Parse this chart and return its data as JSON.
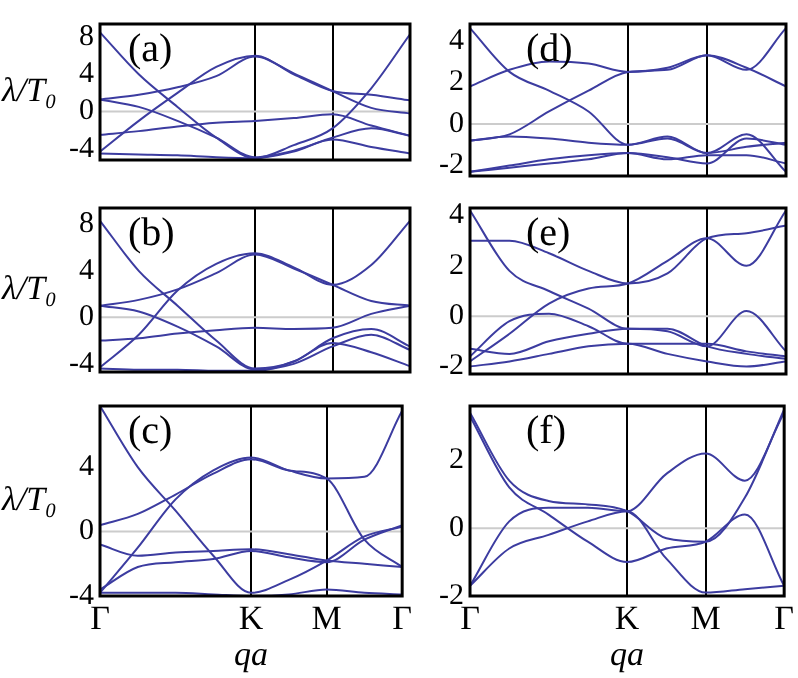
{
  "chart_data": [
    {
      "type": "line",
      "ylabel": "λ/T₀",
      "annotations": [
        "(a)"
      ],
      "categories": [
        null,
        null,
        null,
        null,
        null,
        null,
        null,
        null,
        null
      ],
      "ylim": [
        -5.2,
        9.4
      ],
      "yticks": [
        -4,
        0,
        4,
        8
      ],
      "grid": "x",
      "tick_labels": "y",
      "ref_lines": [
        {
          "axis": "y",
          "value": 0,
          "color": "#cccccc"
        }
      ],
      "series": [
        {
          "color": "#3c3ca0",
          "values": [
            -4.3,
            -1,
            2,
            4.8,
            6,
            4,
            2.2,
            1.8,
            1.2
          ]
        },
        {
          "color": "#3c3ca0",
          "values": [
            8.5,
            4,
            0.5,
            -2.8,
            -5,
            -3.6,
            -1.8,
            2.5,
            8.3
          ]
        },
        {
          "color": "#3c3ca0",
          "values": [
            1.3,
            0.5,
            -1,
            -2.8,
            -4.9,
            -4.2,
            -2.8,
            -1.8,
            -2.6
          ]
        },
        {
          "color": "#3c3ca0",
          "values": [
            -2.5,
            -2.1,
            -1.6,
            -1.2,
            -1,
            -0.7,
            -0.3,
            -1.5,
            -2.6
          ]
        },
        {
          "color": "#3c3ca0",
          "values": [
            -4.5,
            -4.6,
            -4.7,
            -4.9,
            -5,
            -4.3,
            -3,
            -3.8,
            -4.5
          ]
        },
        {
          "color": "#3c3ca0",
          "values": [
            1.3,
            1.8,
            2.6,
            3.8,
            5.9,
            4.1,
            2.2,
            0.4,
            -0.2
          ]
        }
      ]
    },
    {
      "type": "line",
      "annotations": [
        "(d)"
      ],
      "categories": [
        null,
        null,
        null,
        null,
        null,
        null,
        null,
        null,
        null
      ],
      "ylim": [
        -2.5,
        4.8
      ],
      "yticks": [
        -2,
        0,
        2,
        4
      ],
      "grid": "x",
      "tick_labels": "y",
      "ref_lines": [
        {
          "axis": "y",
          "value": 0,
          "color": "#cccccc"
        }
      ],
      "series": [
        {
          "color": "#3c3ca0",
          "values": [
            4.6,
            2.5,
            1.6,
            0.6,
            -1,
            -0.7,
            -1.4,
            -0.5,
            -2.3
          ]
        },
        {
          "color": "#3c3ca0",
          "values": [
            1.8,
            2.6,
            3,
            2.9,
            2.5,
            2.7,
            3.3,
            2.6,
            4.6
          ]
        },
        {
          "color": "#3c3ca0",
          "values": [
            -0.8,
            -0.5,
            0.6,
            1.6,
            2.5,
            2.6,
            3.3,
            2.7,
            1.8
          ]
        },
        {
          "color": "#3c3ca0",
          "values": [
            -0.8,
            -0.6,
            -0.7,
            -0.9,
            -1,
            -0.6,
            -1.4,
            -1.1,
            -0.9
          ]
        },
        {
          "color": "#3c3ca0",
          "values": [
            -2.3,
            -2,
            -1.7,
            -1.5,
            -1.4,
            -1.6,
            -1.9,
            -0.7,
            -1
          ]
        },
        {
          "color": "#3c3ca0",
          "values": [
            -2.3,
            -2.1,
            -1.9,
            -1.7,
            -1.4,
            -1.7,
            -1.5,
            -1.5,
            -1.9
          ]
        }
      ]
    },
    {
      "type": "line",
      "ylabel": "λ/T₀",
      "annotations": [
        "(b)"
      ],
      "categories": [
        null,
        null,
        null,
        null,
        null,
        null,
        null,
        null,
        null
      ],
      "ylim": [
        -4.7,
        9.4
      ],
      "yticks": [
        -4,
        0,
        4,
        8
      ],
      "grid": "x",
      "tick_labels": "y",
      "ref_lines": [
        {
          "axis": "y",
          "value": 0,
          "color": "#cccccc"
        }
      ],
      "series": [
        {
          "color": "#3c3ca0",
          "values": [
            -4.3,
            -1.5,
            2.3,
            4.6,
            5.5,
            4.3,
            2.8,
            4.5,
            8.3
          ]
        },
        {
          "color": "#3c3ca0",
          "values": [
            8.3,
            4,
            1,
            -2,
            -4.4,
            -3.8,
            -1.8,
            -1,
            -2.5
          ]
        },
        {
          "color": "#3c3ca0",
          "values": [
            1,
            0.5,
            -0.8,
            -2.5,
            -4.5,
            -4,
            -2.5,
            -1.5,
            -2.8
          ]
        },
        {
          "color": "#3c3ca0",
          "values": [
            -2,
            -1.8,
            -1.4,
            -1.1,
            -0.9,
            -1,
            -0.9,
            0.3,
            1
          ]
        },
        {
          "color": "#3c3ca0",
          "values": [
            -4.4,
            -4.5,
            -4.5,
            -4.6,
            -4.6,
            -3.8,
            -2.2,
            -3,
            -4.2
          ]
        },
        {
          "color": "#3c3ca0",
          "values": [
            1,
            1.5,
            2.4,
            3.8,
            5.4,
            4.2,
            2.8,
            1.4,
            1
          ]
        }
      ]
    },
    {
      "type": "line",
      "annotations": [
        "(e)"
      ],
      "categories": [
        null,
        null,
        null,
        null,
        null,
        null,
        null,
        null,
        null
      ],
      "ylim": [
        -2.3,
        4.3
      ],
      "yticks": [
        -2,
        0,
        2,
        4
      ],
      "grid": "x",
      "tick_labels": "y",
      "ref_lines": [
        {
          "axis": "y",
          "value": 0,
          "color": "#cccccc"
        }
      ],
      "series": [
        {
          "color": "#3c3ca0",
          "values": [
            4.2,
            1.8,
            1,
            0.3,
            -0.5,
            -0.5,
            -1.2,
            -1.5,
            -1.7
          ]
        },
        {
          "color": "#3c3ca0",
          "values": [
            3,
            3,
            2.5,
            1.8,
            1.3,
            1.7,
            3.1,
            3.3,
            3.6
          ]
        },
        {
          "color": "#3c3ca0",
          "values": [
            -1.8,
            -0.7,
            0.5,
            1.1,
            1.3,
            2.2,
            3.1,
            2,
            4.2
          ]
        },
        {
          "color": "#3c3ca0",
          "values": [
            -1.6,
            -0.2,
            0.1,
            -0.4,
            -1.1,
            -1.1,
            -1.1,
            -1.4,
            -1.6
          ]
        },
        {
          "color": "#3c3ca0",
          "values": [
            -1.3,
            -1.5,
            -1,
            -0.7,
            -0.5,
            -0.6,
            -1.2,
            0.2,
            -1.4
          ]
        },
        {
          "color": "#3c3ca0",
          "values": [
            -2,
            -1.8,
            -1.5,
            -1.2,
            -1.1,
            -1.5,
            -1.8,
            -2,
            -1.8
          ]
        }
      ]
    },
    {
      "type": "line",
      "ylabel": "λ/T₀",
      "xlabel": "qa",
      "annotations": [
        "(c)"
      ],
      "categories": [
        "Γ",
        null,
        null,
        null,
        "K",
        null,
        "M",
        null,
        "Γ"
      ],
      "ylim": [
        -4,
        7.8
      ],
      "yticks": [
        -4,
        0,
        4
      ],
      "grid": "x",
      "ref_lines": [
        {
          "axis": "y",
          "value": 0,
          "color": "#cccccc"
        }
      ],
      "series": [
        {
          "color": "#3c3ca0",
          "values": [
            7.8,
            4,
            1.3,
            -1.5,
            -3.8,
            -3,
            -1.8,
            -0.3,
            0.3
          ]
        },
        {
          "color": "#3c3ca0",
          "values": [
            -3.8,
            -1,
            2,
            3.8,
            4.6,
            3.8,
            3.3,
            3.4,
            7.5
          ]
        },
        {
          "color": "#3c3ca0",
          "values": [
            0.4,
            1.1,
            2.3,
            3.6,
            4.5,
            3.8,
            3.3,
            -0.5,
            -2.2
          ]
        },
        {
          "color": "#3c3ca0",
          "values": [
            -0.8,
            -1.5,
            -1.3,
            -1.2,
            -1.1,
            -1.4,
            -1.8,
            -2,
            -2.2
          ]
        },
        {
          "color": "#3c3ca0",
          "values": [
            -3.8,
            -3.8,
            -3.8,
            -3.9,
            -4,
            -3.9,
            -3.6,
            -3.8,
            -3.9
          ]
        },
        {
          "color": "#3c3ca0",
          "values": [
            -3.6,
            -2.2,
            -1.9,
            -1.7,
            -1.2,
            -1.6,
            -1.9,
            -0.5,
            0.4
          ]
        }
      ]
    },
    {
      "type": "line",
      "xlabel": "qa",
      "annotations": [
        "(f)"
      ],
      "categories": [
        "Γ",
        null,
        null,
        null,
        "K",
        null,
        "M",
        null,
        "Γ"
      ],
      "ylim": [
        -2,
        3.6
      ],
      "yticks": [
        -2,
        0,
        2
      ],
      "grid": "x",
      "ref_lines": [
        {
          "axis": "y",
          "value": 0,
          "color": "#cccccc"
        }
      ],
      "series": [
        {
          "color": "#3c3ca0",
          "values": [
            3.4,
            1.4,
            0.8,
            0.7,
            0.5,
            -0.3,
            -0.4,
            0.9,
            3.5
          ]
        },
        {
          "color": "#3c3ca0",
          "values": [
            3.3,
            1.2,
            0.4,
            -0.4,
            -1,
            -0.6,
            -0.4,
            0.4,
            -1.7
          ]
        },
        {
          "color": "#3c3ca0",
          "values": [
            -1.7,
            0.2,
            0.6,
            0.6,
            0.5,
            1.6,
            2.2,
            1.4,
            3.4
          ]
        },
        {
          "color": "#3c3ca0",
          "values": [
            -1.7,
            -0.6,
            -0.2,
            0.2,
            0.5,
            -0.9,
            -1.9,
            -1.8,
            -1.7
          ]
        }
      ]
    }
  ]
}
